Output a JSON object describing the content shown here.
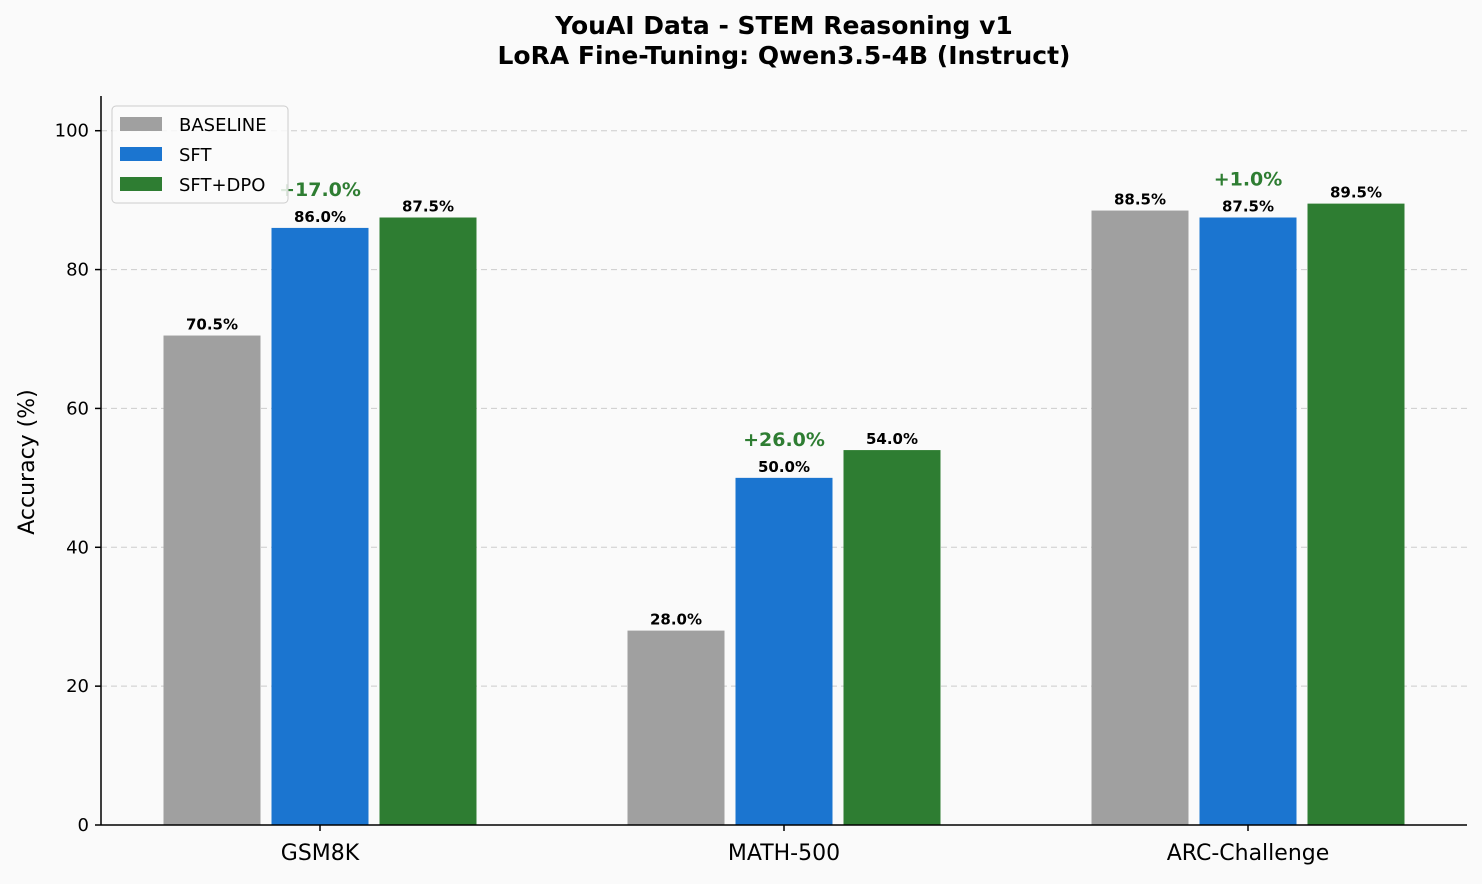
{
  "chart_data": {
    "type": "bar",
    "title": [
      "YouAI Data - STEM Reasoning v1",
      "LoRA Fine-Tuning: Qwen3.5-4B (Instruct)"
    ],
    "xlabel": "",
    "ylabel": "Accuracy (%)",
    "ylim": [
      0,
      105
    ],
    "yticks": [
      0,
      20,
      40,
      60,
      80,
      100
    ],
    "grid": true,
    "legend_position": "top-left",
    "categories": [
      "GSM8K",
      "MATH-500",
      "ARC-Challenge"
    ],
    "series": [
      {
        "name": "BASELINE",
        "color": "#a0a0a0",
        "values": [
          70.5,
          28.0,
          88.5
        ],
        "labels": [
          "70.5%",
          "28.0%",
          "88.5%"
        ]
      },
      {
        "name": "SFT",
        "color": "#1b75d0",
        "values": [
          86.0,
          50.0,
          87.5
        ],
        "labels": [
          "86.0%",
          "50.0%",
          "87.5%"
        ]
      },
      {
        "name": "SFT+DPO",
        "color": "#2e7d32",
        "values": [
          87.5,
          54.0,
          89.5
        ],
        "labels": [
          "87.5%",
          "54.0%",
          "89.5%"
        ]
      }
    ],
    "annotations": [
      {
        "category": "GSM8K",
        "text": "+17.0%",
        "color": "#2e7d32"
      },
      {
        "category": "MATH-500",
        "text": "+26.0%",
        "color": "#2e7d32"
      },
      {
        "category": "ARC-Challenge",
        "text": "+1.0%",
        "color": "#2e7d32"
      }
    ]
  }
}
